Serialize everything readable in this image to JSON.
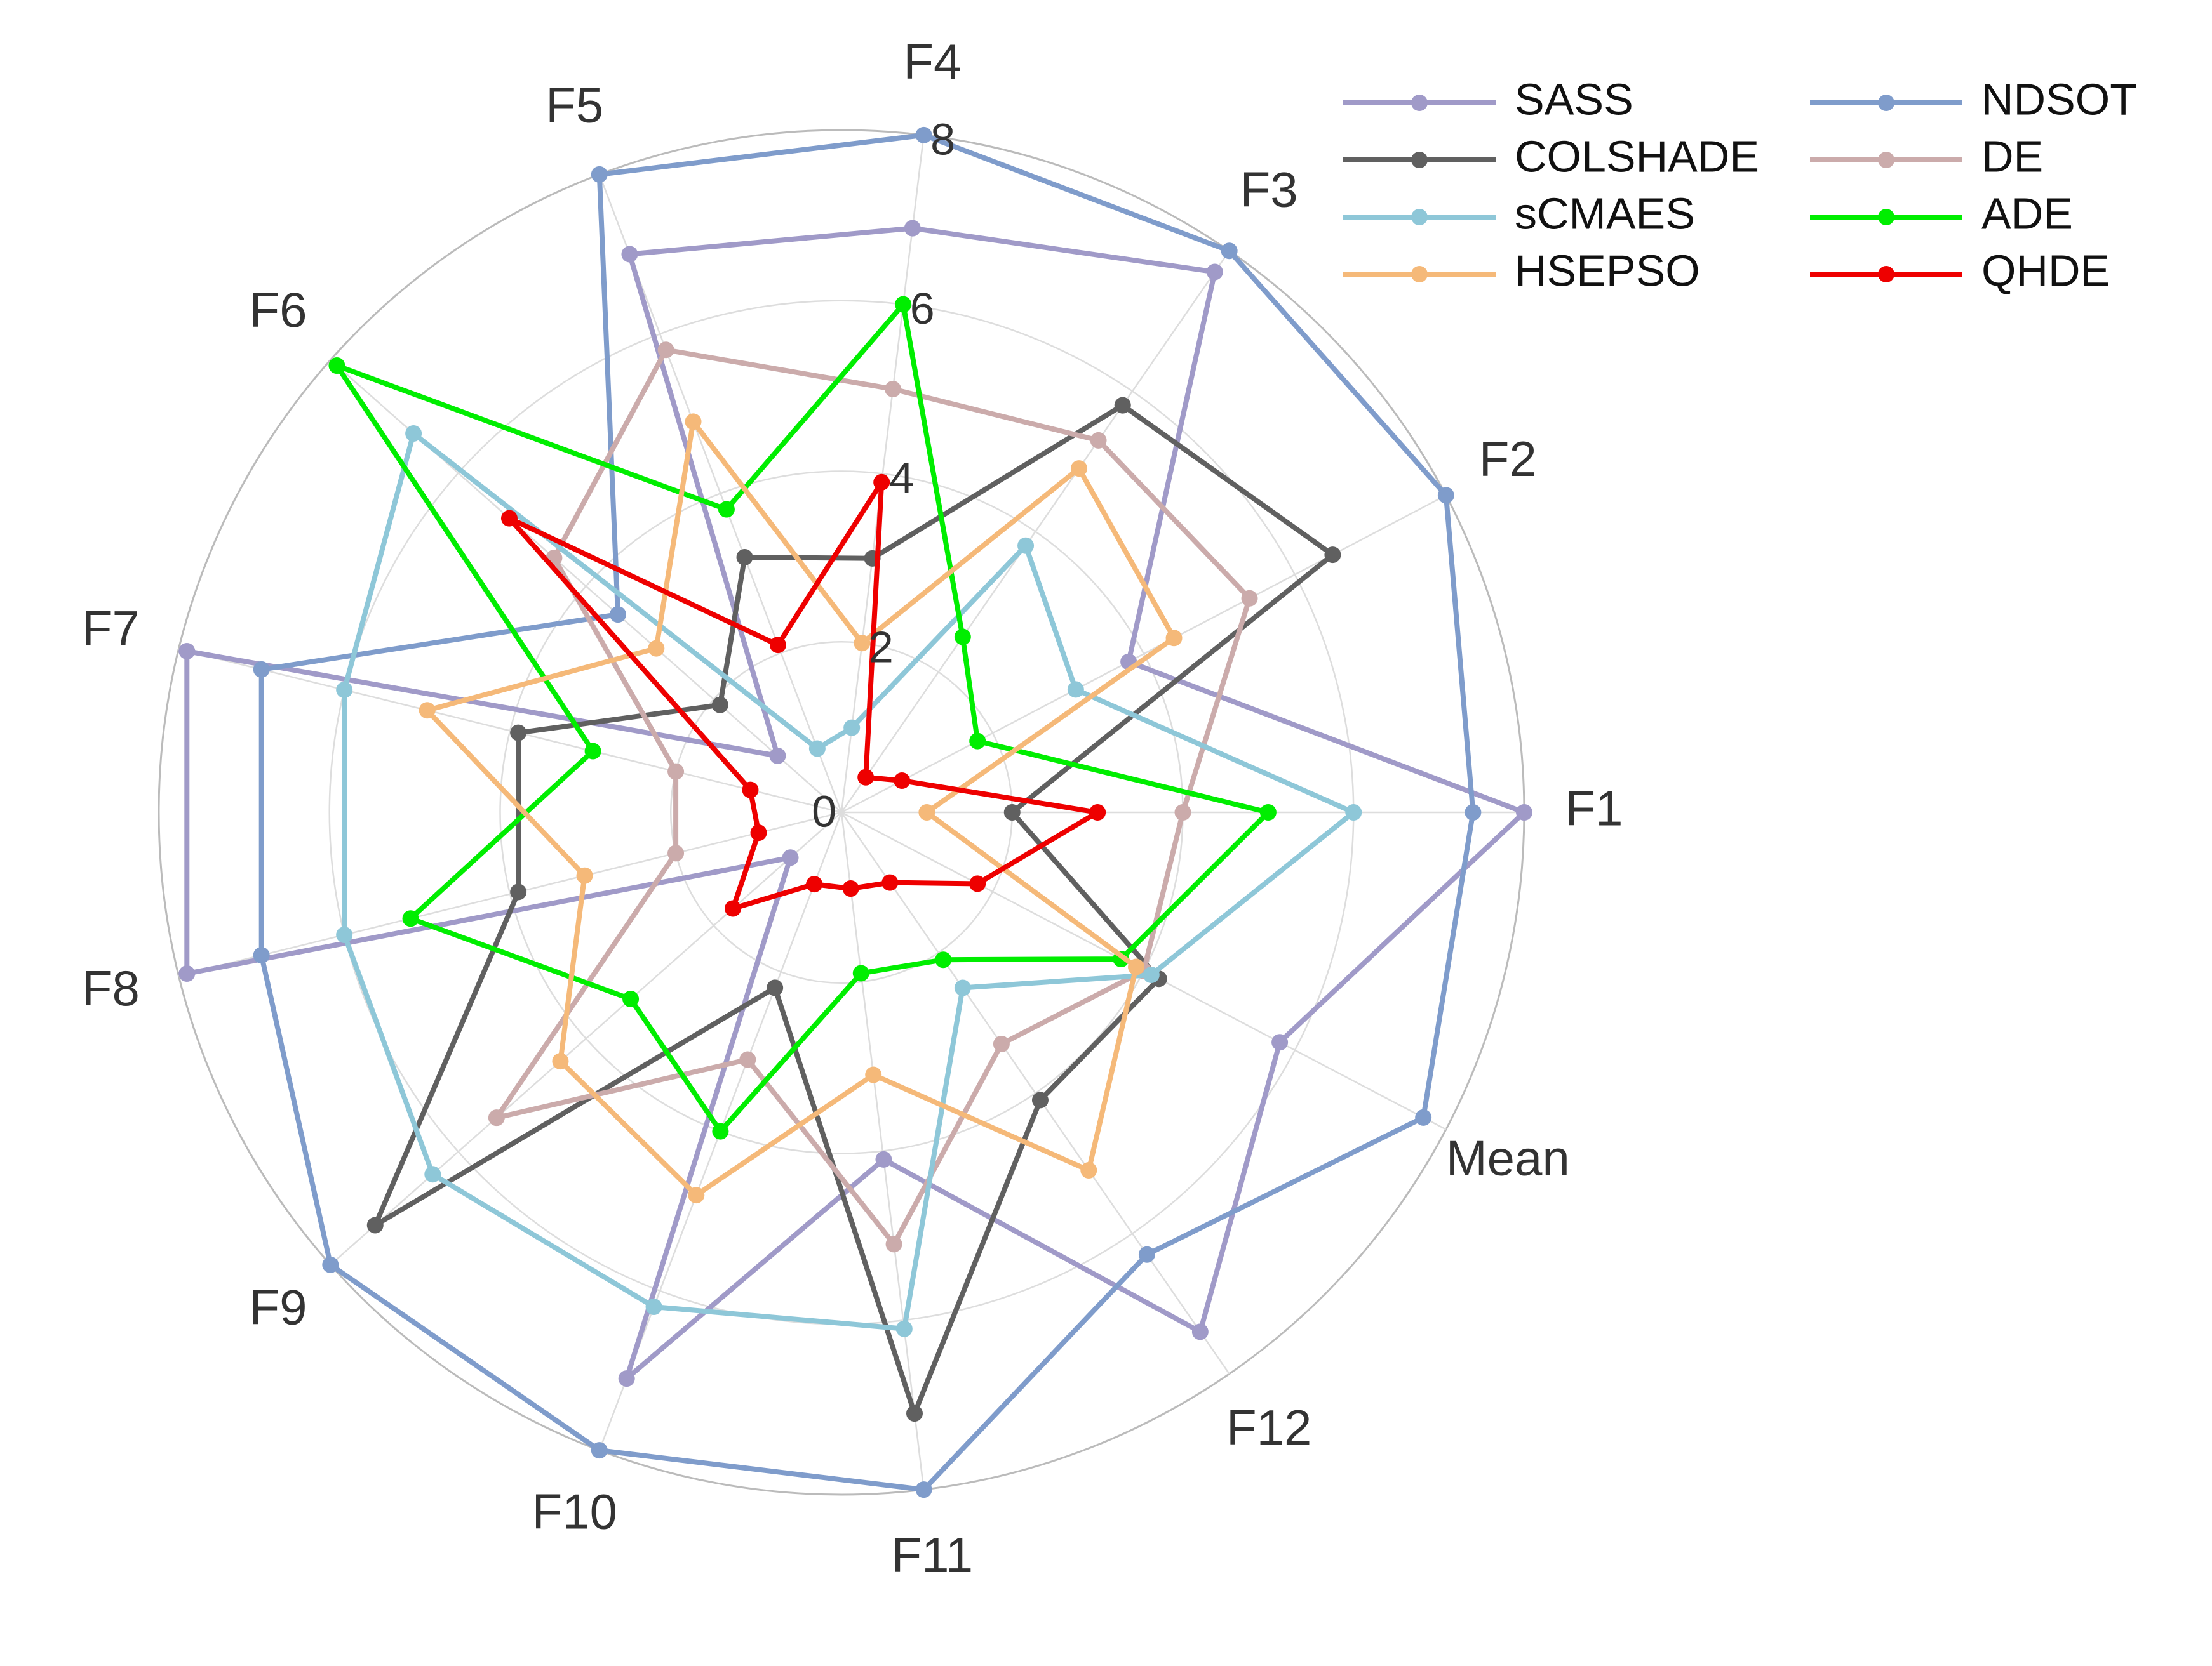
{
  "chart_data": {
    "type": "radar",
    "title": "",
    "axes": [
      "F1",
      "F2",
      "F3",
      "F4",
      "F5",
      "F6",
      "F7",
      "F8",
      "F9",
      "F10",
      "F11",
      "F12",
      "Mean"
    ],
    "r_ticks": [
      0,
      2,
      4,
      6,
      8
    ],
    "r_max": 8,
    "grid": true,
    "legend_position": "top-right",
    "legend_columns": 2,
    "series": [
      {
        "name": "SASS",
        "color": "#a09ac8",
        "values": [
          8.0,
          3.8,
          7.7,
          6.9,
          7.0,
          1.0,
          7.9,
          7.9,
          0.8,
          7.1,
          4.1,
          7.4,
          5.8
        ]
      },
      {
        "name": "NDSOT",
        "color": "#7f9ccb",
        "values": [
          7.4,
          8.0,
          8.0,
          8.0,
          8.0,
          3.5,
          7.0,
          7.0,
          8.0,
          8.0,
          8.0,
          6.3,
          7.7
        ]
      },
      {
        "name": "COLSHADE",
        "color": "#606060",
        "values": [
          2.0,
          6.5,
          5.8,
          3.0,
          3.2,
          1.9,
          3.9,
          3.9,
          7.3,
          2.2,
          7.1,
          4.1,
          4.2
        ]
      },
      {
        "name": "DE",
        "color": "#cbabab",
        "values": [
          4.0,
          5.4,
          5.3,
          5.0,
          5.8,
          4.5,
          2.0,
          2.0,
          5.4,
          3.1,
          5.1,
          3.3,
          4.0
        ]
      },
      {
        "name": "sCMAES",
        "color": "#8ec7d8",
        "values": [
          6.0,
          3.1,
          3.8,
          1.0,
          0.8,
          6.7,
          6.0,
          6.0,
          6.4,
          6.2,
          6.1,
          2.5,
          4.1
        ]
      },
      {
        "name": "ADE",
        "color": "#00ee00",
        "values": [
          5.0,
          1.8,
          2.5,
          6.0,
          3.8,
          7.9,
          3.0,
          5.2,
          3.3,
          4.0,
          1.9,
          2.1,
          3.7
        ]
      },
      {
        "name": "HSEPSO",
        "color": "#f5b979",
        "values": [
          1.0,
          4.4,
          4.9,
          2.0,
          4.9,
          2.9,
          5.0,
          3.1,
          4.4,
          4.8,
          3.1,
          5.1,
          3.9
        ]
      },
      {
        "name": "QHDE",
        "color": "#ee0000",
        "values": [
          3.0,
          0.8,
          0.5,
          3.9,
          2.1,
          5.2,
          1.1,
          1.0,
          1.7,
          0.9,
          0.9,
          1.0,
          1.8
        ]
      }
    ]
  }
}
